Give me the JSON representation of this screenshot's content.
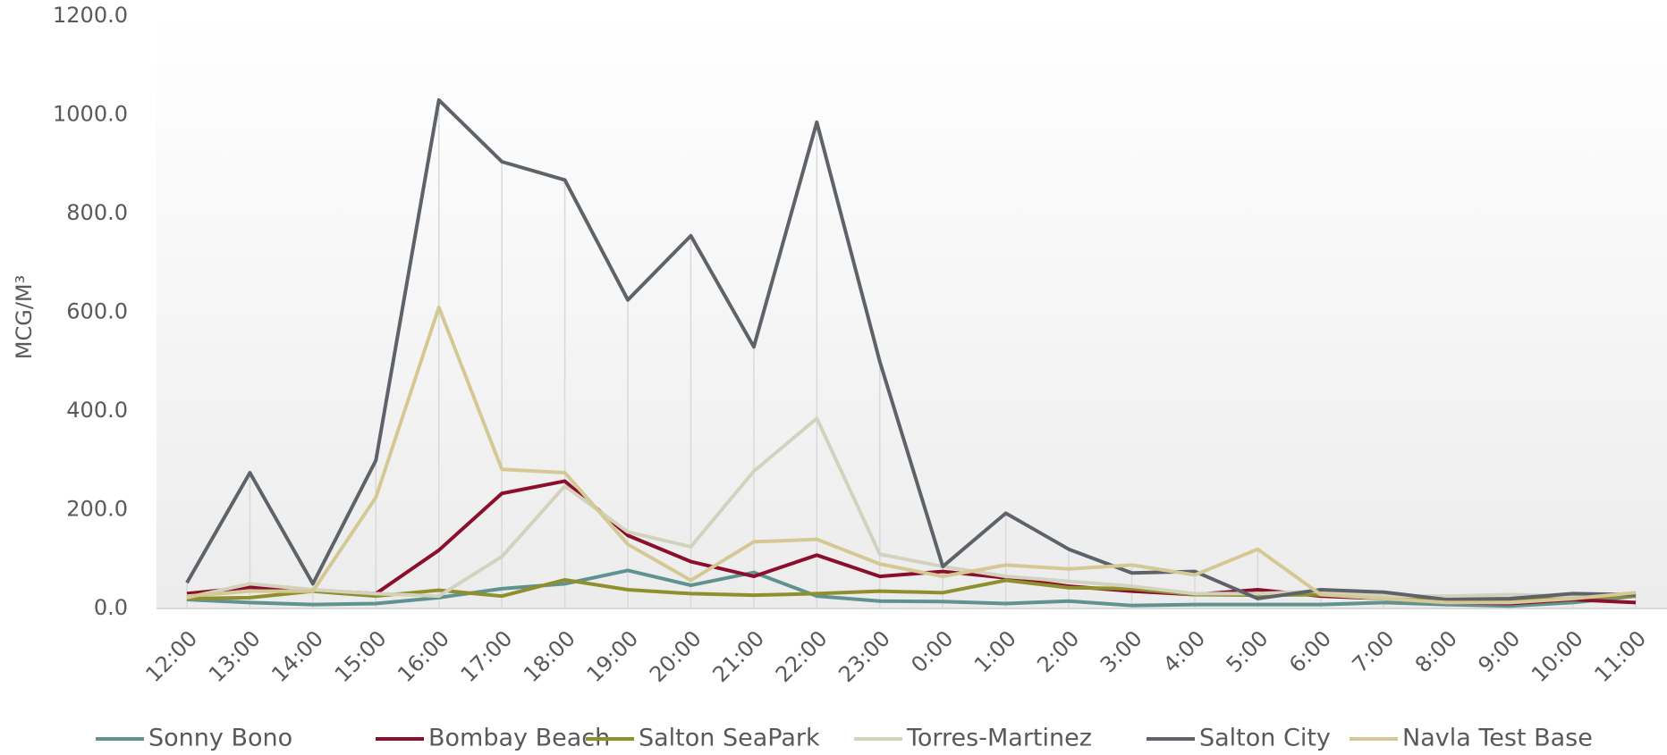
{
  "chart_data": {
    "type": "line",
    "y_label": "MCG/M³",
    "categories": [
      "12:00",
      "13:00",
      "14:00",
      "15:00",
      "16:00",
      "17:00",
      "18:00",
      "19:00",
      "20:00",
      "21:00",
      "22:00",
      "23:00",
      "0:00",
      "1:00",
      "2:00",
      "3:00",
      "4:00",
      "5:00",
      "6:00",
      "7:00",
      "8:00",
      "9:00",
      "10:00",
      "11:00"
    ],
    "ylim": [
      0,
      1200
    ],
    "yticks": [
      {
        "value": 0,
        "label": "0.0"
      },
      {
        "value": 200,
        "label": "200.0"
      },
      {
        "value": 400,
        "label": "400.0"
      },
      {
        "value": 600,
        "label": "600.0"
      },
      {
        "value": 800,
        "label": "800.0"
      },
      {
        "value": 1000,
        "label": "1000.0"
      },
      {
        "value": 1200,
        "label": "1200.0"
      }
    ],
    "series": [
      {
        "name": "Sonny Bono",
        "color": "#5f9291",
        "values": [
          18,
          12,
          8,
          10,
          22,
          40,
          50,
          77,
          47,
          73,
          25,
          15,
          14,
          10,
          15,
          6,
          8,
          8,
          8,
          12,
          8,
          5,
          12,
          25
        ]
      },
      {
        "name": "Bombay Beach",
        "color": "#8b0f2d",
        "values": [
          30,
          43,
          37,
          30,
          118,
          233,
          258,
          148,
          95,
          65,
          108,
          65,
          75,
          62,
          45,
          35,
          28,
          38,
          25,
          20,
          12,
          10,
          18,
          12
        ]
      },
      {
        "name": "Salton SeaPark",
        "color": "#8f8f2e",
        "values": [
          20,
          22,
          35,
          25,
          37,
          25,
          58,
          38,
          30,
          27,
          30,
          35,
          32,
          57,
          42,
          40,
          28,
          27,
          28,
          22,
          15,
          15,
          22,
          25
        ]
      },
      {
        "name": "Torres-Martinez",
        "color": "#d2d2bf",
        "values": [
          22,
          50,
          38,
          30,
          25,
          105,
          248,
          155,
          125,
          278,
          385,
          110,
          85,
          65,
          55,
          45,
          30,
          30,
          35,
          25,
          25,
          28,
          25,
          30
        ]
      },
      {
        "name": "Salton City",
        "color": "#5d6368",
        "values": [
          52,
          275,
          50,
          300,
          1030,
          905,
          868,
          625,
          755,
          530,
          985,
          500,
          85,
          193,
          120,
          72,
          75,
          20,
          38,
          33,
          18,
          20,
          30,
          28
        ]
      },
      {
        "name": "Navla Test Base",
        "color": "#d4c995",
        "values": [
          25,
          35,
          35,
          225,
          610,
          282,
          275,
          130,
          57,
          135,
          140,
          90,
          65,
          88,
          80,
          88,
          68,
          120,
          28,
          20,
          12,
          12,
          20,
          32
        ]
      }
    ]
  }
}
